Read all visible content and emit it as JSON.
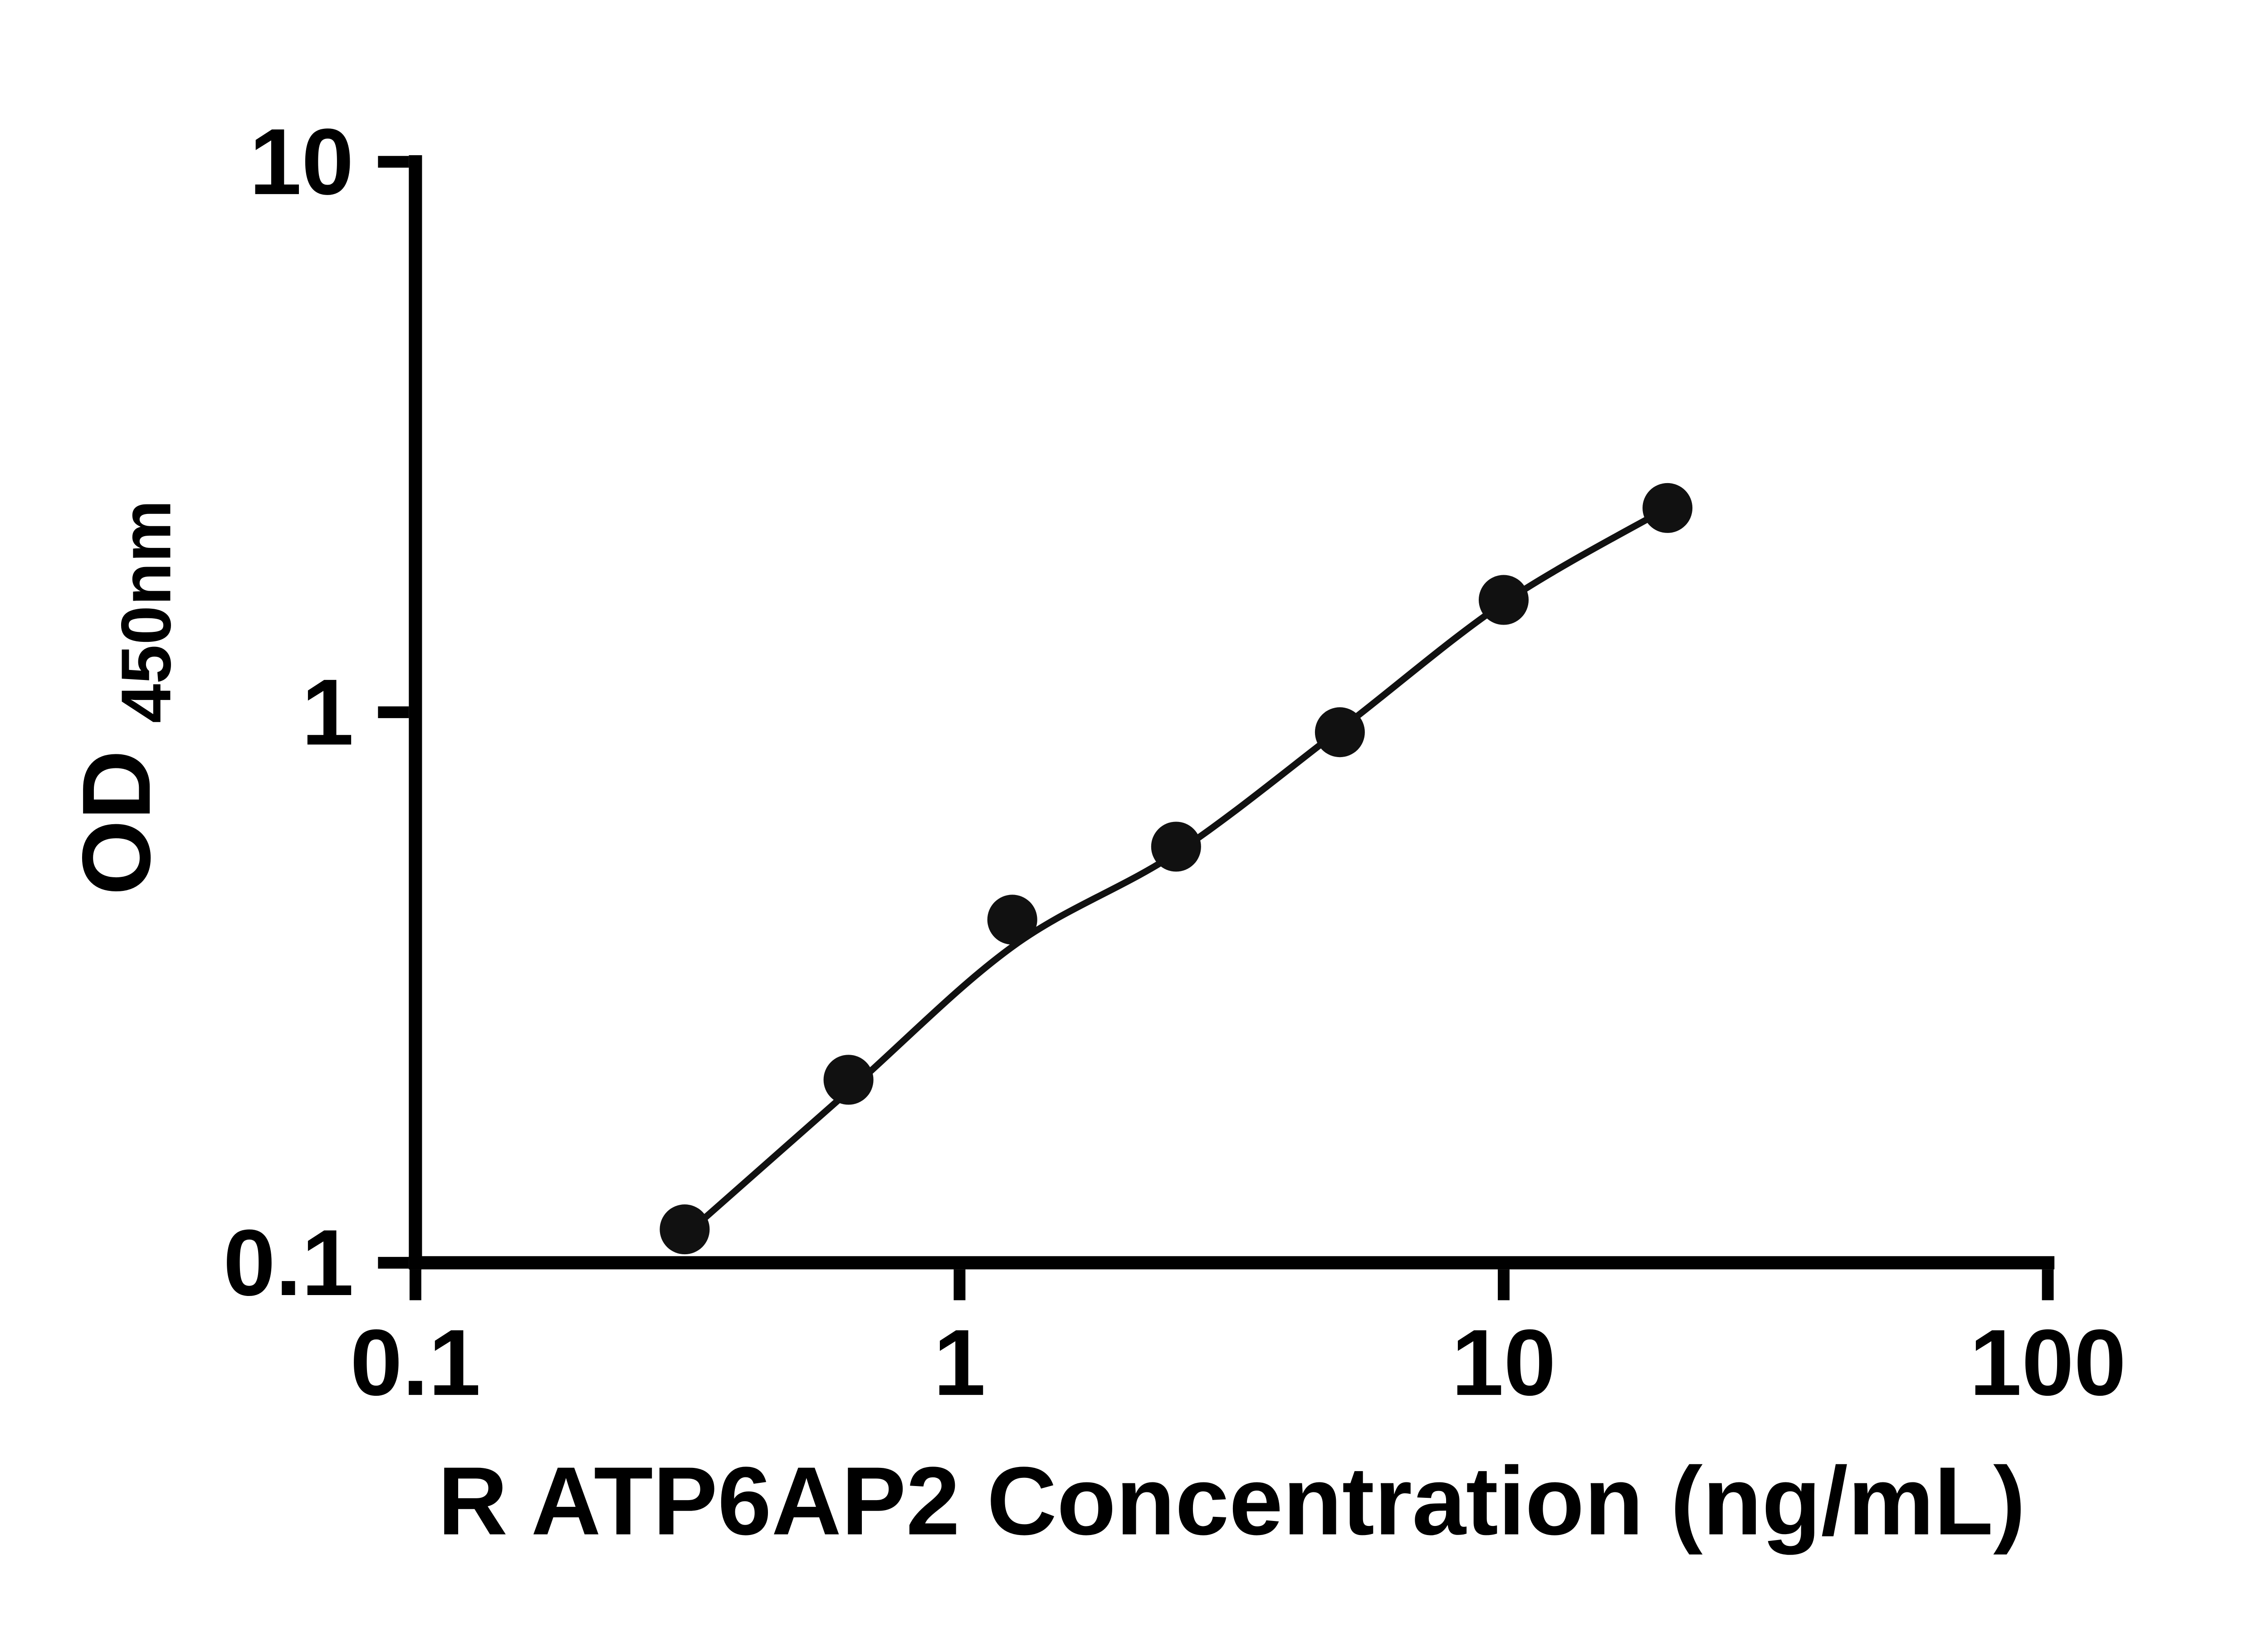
{
  "chart_data": {
    "type": "scatter",
    "title": "",
    "xlabel": "R ATP6AP2 Concentration (ng/mL)",
    "ylabel_main": "OD",
    "ylabel_sub": "450nm",
    "x_scale": "log",
    "y_scale": "log",
    "xlim": [
      0.1,
      100
    ],
    "ylim": [
      0.1,
      10
    ],
    "x_ticks": [
      0.1,
      1,
      10,
      100
    ],
    "x_tick_labels": [
      "0.1",
      "1",
      "10",
      "100"
    ],
    "y_ticks": [
      0.1,
      1,
      10
    ],
    "y_tick_labels": [
      "0.1",
      "1",
      "10"
    ],
    "grid": "off",
    "legend": "none",
    "points": [
      {
        "x": 0.3125,
        "y": 0.115
      },
      {
        "x": 0.625,
        "y": 0.215
      },
      {
        "x": 1.25,
        "y": 0.42
      },
      {
        "x": 2.5,
        "y": 0.57
      },
      {
        "x": 5,
        "y": 0.92
      },
      {
        "x": 10,
        "y": 1.6
      },
      {
        "x": 20,
        "y": 2.35
      }
    ],
    "trend": [
      [
        0.3125,
        0.112
      ],
      [
        0.625,
        0.205
      ],
      [
        1.25,
        0.375
      ],
      [
        2.5,
        0.555
      ],
      [
        5,
        0.93
      ],
      [
        10,
        1.58
      ],
      [
        20,
        2.35
      ]
    ],
    "colors": {
      "axis": "#000000",
      "point": "#111111",
      "line": "#111111",
      "background": "#ffffff"
    }
  }
}
